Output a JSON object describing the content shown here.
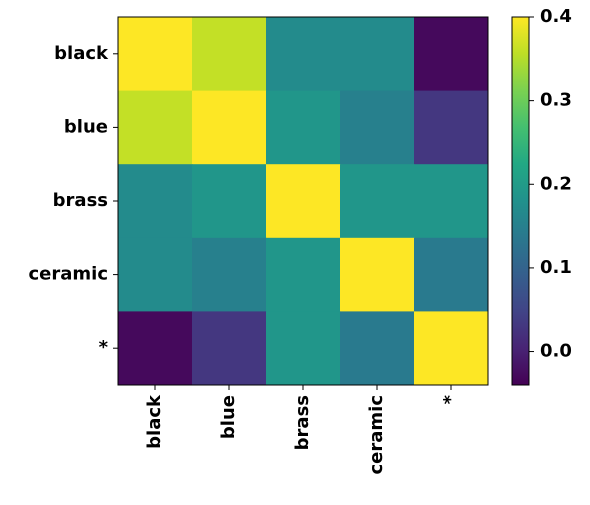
{
  "chart_data": {
    "type": "heatmap",
    "title": "",
    "xlabel": "",
    "ylabel": "",
    "x_categories": [
      "black",
      "blue",
      "brass",
      "ceramic",
      "*"
    ],
    "y_categories": [
      "black",
      "blue",
      "brass",
      "ceramic",
      "*"
    ],
    "values": [
      [
        0.4,
        0.36,
        0.17,
        0.17,
        -0.03
      ],
      [
        0.36,
        0.4,
        0.19,
        0.15,
        0.03
      ],
      [
        0.17,
        0.19,
        0.4,
        0.19,
        0.19
      ],
      [
        0.17,
        0.15,
        0.19,
        0.4,
        0.14
      ],
      [
        -0.03,
        0.03,
        0.19,
        0.14,
        0.4
      ]
    ],
    "colormap": "viridis",
    "vmin": -0.04,
    "vmax": 0.4,
    "colorbar": {
      "ticks": [
        0.0,
        0.1,
        0.2,
        0.3,
        0.4
      ],
      "tick_labels": [
        "0.0",
        "0.1",
        "0.2",
        "0.3",
        "0.4"
      ]
    }
  }
}
